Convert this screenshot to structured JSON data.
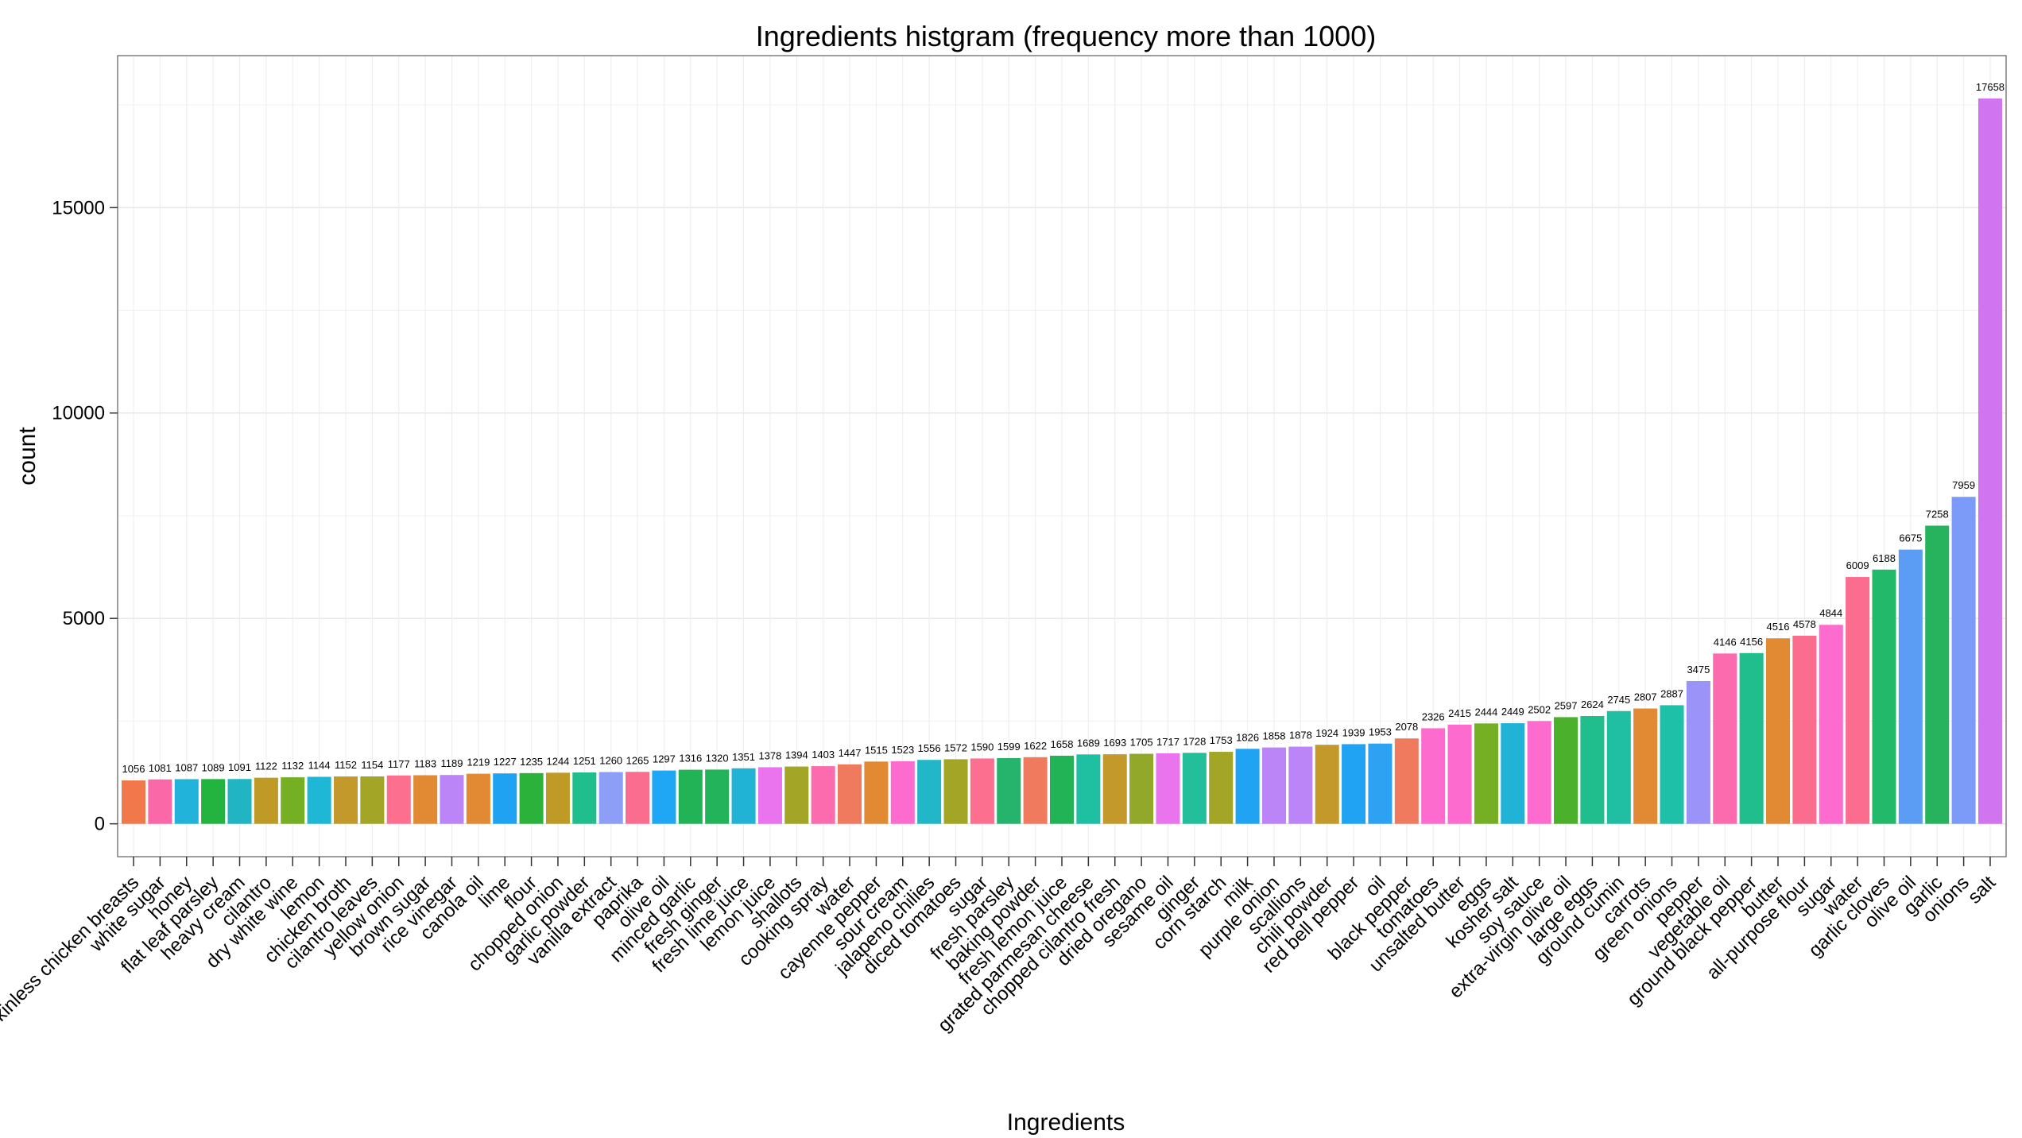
{
  "chart_data": {
    "type": "bar",
    "title": "Ingredients histgram (frequency more than 1000)",
    "xlabel": "Ingredients",
    "ylabel": "count",
    "ylim": [
      -800,
      18700
    ],
    "yticks": [
      0,
      5000,
      10000,
      15000
    ],
    "grid": true,
    "legend": "none",
    "categories": [
      "boneless skinless chicken breasts",
      "white sugar",
      "honey",
      "flat leaf parsley",
      "heavy cream",
      "cilantro",
      "dry white wine",
      "lemon",
      "chicken broth",
      "cilantro leaves",
      "yellow onion",
      "brown sugar",
      "rice vinegar",
      "canola oil",
      "lime",
      "flour",
      "chopped onion",
      "garlic powder",
      "vanilla extract",
      "paprika",
      "olive oil",
      "minced garlic",
      "fresh ginger",
      "fresh lime juice",
      "lemon juice",
      "shallots",
      "cooking spray",
      "water",
      "cayenne pepper",
      "sour cream",
      "jalapeno chilies",
      "diced tomatoes",
      "sugar",
      "fresh parsley",
      "baking powder",
      "fresh lemon juice",
      "grated parmesan cheese",
      "chopped cilantro fresh",
      "dried oregano",
      "sesame oil",
      "ginger",
      "corn starch",
      "milk",
      "purple onion",
      "scallions",
      "chili powder",
      "red bell pepper",
      "oil",
      "black pepper",
      "tomatoes",
      "unsalted butter",
      "eggs",
      "kosher salt",
      "soy sauce",
      "extra-virgin olive oil",
      "large eggs",
      "ground cumin",
      "carrots",
      "green onions",
      "pepper",
      "vegetable oil",
      "ground black pepper",
      "butter",
      "all-purpose flour",
      "sugar",
      "water",
      "garlic cloves",
      "olive oil",
      "garlic",
      "onions",
      "salt"
    ],
    "values": [
      1056,
      1081,
      1087,
      1089,
      1091,
      1122,
      1132,
      1144,
      1152,
      1154,
      1177,
      1183,
      1189,
      1219,
      1227,
      1235,
      1244,
      1251,
      1260,
      1265,
      1297,
      1316,
      1320,
      1351,
      1378,
      1394,
      1403,
      1447,
      1515,
      1523,
      1556,
      1572,
      1590,
      1599,
      1622,
      1658,
      1689,
      1693,
      1705,
      1717,
      1728,
      1753,
      1826,
      1858,
      1878,
      1924,
      1939,
      1953,
      2078,
      2326,
      2415,
      2444,
      2449,
      2502,
      2597,
      2624,
      2745,
      2807,
      2887,
      3475,
      4146,
      4156,
      4516,
      4578,
      4844,
      6009,
      6188,
      6675,
      7258,
      7959,
      17658
    ],
    "colors": [
      "#F0784A",
      "#FB68A7",
      "#21B3D9",
      "#22B43F",
      "#21B5C4",
      "#BF9A26",
      "#74AF24",
      "#1FB7D6",
      "#C4992B",
      "#A3A527",
      "#FC6F8E",
      "#E28A33",
      "#BB85F8",
      "#E28A33",
      "#1FA2F1",
      "#2AB23B",
      "#BF9A26",
      "#20BE8C",
      "#8C9EF6",
      "#FB6D8F",
      "#1FA6F4",
      "#22B356",
      "#23B45B",
      "#21B3D6",
      "#EA74EE",
      "#A3A527",
      "#FB6BAD",
      "#F07A5E",
      "#E28A33",
      "#FC6BCD",
      "#22B7C8",
      "#A3A527",
      "#FC6F8E",
      "#26B46D",
      "#F07A5E",
      "#22B356",
      "#1FBFA2",
      "#C4992B",
      "#91A82A",
      "#EA74EE",
      "#22BF9A",
      "#A3A527",
      "#1FA3F2",
      "#BB85F8",
      "#BB85F8",
      "#C4992B",
      "#1FA3F2",
      "#2EA2F2",
      "#F07A5E",
      "#FC6BCD",
      "#FC6BCD",
      "#74AF24",
      "#21B3D6",
      "#FC6BCD",
      "#4BB12D",
      "#20BE8C",
      "#20BFA4",
      "#E28A33",
      "#1FC0A8",
      "#9B93F8",
      "#FB6BAD",
      "#20BE8C",
      "#E28A33",
      "#FB6D8F",
      "#FC6BCD",
      "#FB6D8F",
      "#22B96B",
      "#5B9DF5",
      "#27B35E",
      "#7C9BF8",
      "#D174F0"
    ]
  }
}
